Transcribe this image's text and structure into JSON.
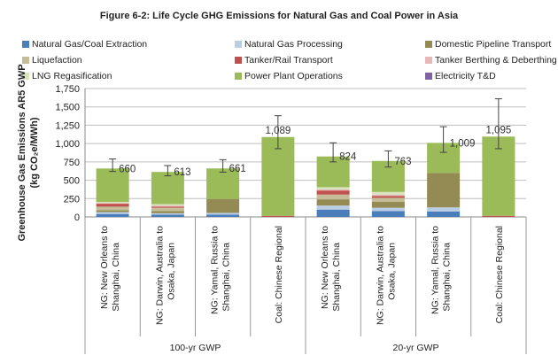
{
  "chart_data": {
    "type": "bar",
    "stacked": true,
    "title": "Figure 6-2: Life Cycle GHG Emissions for Natural Gas and Coal Power in Asia",
    "ylabel_line1": "Greenhouse Gas Emissions AR5 GWP",
    "ylabel_line2": "(kg CO₂e/MWh)",
    "ylim": [
      0,
      1750
    ],
    "yticks": [
      0,
      250,
      500,
      750,
      1000,
      1250,
      1500,
      1750
    ],
    "ytick_labels": [
      "0",
      "250",
      "500",
      "750",
      "1,000",
      "1,250",
      "1,500",
      "1,750"
    ],
    "grid": true,
    "legend_position": "top",
    "groups": [
      "100-yr GWP",
      "20-yr GWP"
    ],
    "categories": [
      [
        "NG: New Orleans to",
        "Shanghai, China"
      ],
      [
        "NG: Darwin, Australia to",
        "Osaka, Japan"
      ],
      [
        "NG: Yamal, Russia to",
        "Shanghai, China"
      ],
      [
        "Coal: Chinese Regional"
      ],
      [
        "NG: New Orleans to",
        "Shanghai, China"
      ],
      [
        "NG: Darwin, Australia to",
        "Osaka, Japan"
      ],
      [
        "NG: Yamal, Russia to",
        "Shanghai, China"
      ],
      [
        "Coal: Chinese Regional"
      ]
    ],
    "totals": [
      660,
      613,
      661,
      1089,
      824,
      763,
      1009,
      1095
    ],
    "total_labels": [
      "660",
      "613",
      "661",
      "1,089",
      "824",
      "763",
      "1,009",
      "1,095"
    ],
    "error_high": [
      790,
      700,
      780,
      1380,
      1010,
      900,
      1230,
      1610
    ],
    "error_low": [
      620,
      560,
      610,
      930,
      750,
      680,
      880,
      930
    ],
    "series": [
      {
        "name": "Natural Gas/Coal Extraction",
        "color": "#4a7ebb",
        "values": [
          40,
          30,
          30,
          0,
          100,
          80,
          75,
          0
        ]
      },
      {
        "name": "Natural Gas Processing",
        "color": "#b9cde5",
        "values": [
          25,
          20,
          25,
          0,
          55,
          45,
          55,
          0
        ]
      },
      {
        "name": "Domestic Pipeline Transport",
        "color": "#948a54",
        "values": [
          25,
          30,
          190,
          0,
          85,
          80,
          470,
          0
        ]
      },
      {
        "name": "Liquefaction",
        "color": "#c4bd97",
        "values": [
          50,
          45,
          0,
          0,
          65,
          55,
          0,
          0
        ]
      },
      {
        "name": "Tanker/Rail Transport",
        "color": "#c0504d",
        "values": [
          40,
          15,
          0,
          15,
          55,
          25,
          0,
          15
        ]
      },
      {
        "name": "Tanker Berthing & Deberthing",
        "color": "#e6b9b8",
        "values": [
          10,
          15,
          0,
          0,
          15,
          20,
          0,
          0
        ]
      },
      {
        "name": "LNG Regasification",
        "color": "#d7e4bd",
        "values": [
          15,
          20,
          0,
          0,
          30,
          35,
          0,
          0
        ]
      },
      {
        "name": "Power Plant Operations",
        "color": "#9bbb59",
        "values": [
          455,
          438,
          416,
          1074,
          419,
          423,
          409,
          1080
        ]
      },
      {
        "name": "Electricity T&D",
        "color": "#8064a2",
        "values": [
          0,
          0,
          0,
          0,
          0,
          0,
          0,
          0
        ]
      }
    ]
  }
}
